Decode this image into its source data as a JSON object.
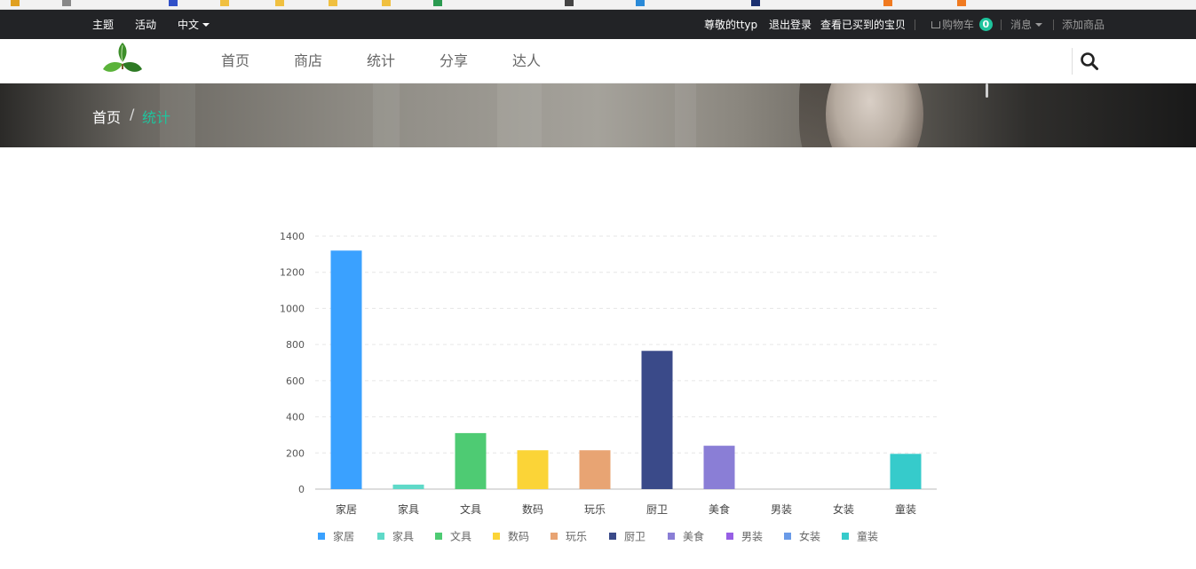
{
  "topbar": {
    "links_left": [
      {
        "label": "主题"
      },
      {
        "label": "活动"
      },
      {
        "label": "中文"
      }
    ],
    "greeting": "尊敬的ttyp",
    "logout": "退出登录",
    "purchased": "查看已买到的宝贝",
    "cart_label": "购物车",
    "cart_count": "0",
    "messages": "消息",
    "add_product": "添加商品",
    "badge_color": "#1fc49d"
  },
  "nav": {
    "items": [
      {
        "label": "首页"
      },
      {
        "label": "商店"
      },
      {
        "label": "统计"
      },
      {
        "label": "分享"
      },
      {
        "label": "达人"
      }
    ]
  },
  "breadcrumb": {
    "home": "首页",
    "separator": "/",
    "current": "统计",
    "current_color": "#1fc49d"
  },
  "chart_data": {
    "type": "bar",
    "categories": [
      "家居",
      "家具",
      "文具",
      "数码",
      "玩乐",
      "厨卫",
      "美食",
      "男装",
      "女装",
      "童装"
    ],
    "values": [
      1320,
      25,
      310,
      215,
      215,
      765,
      240,
      0,
      0,
      195
    ],
    "colors": [
      "#3aa1ff",
      "#5fd9c8",
      "#4ecb73",
      "#fbd437",
      "#e8a473",
      "#3a4a89",
      "#8a7ed6",
      "#975fe5",
      "#6a9be8",
      "#36cbcb"
    ],
    "ylim": [
      0,
      1400
    ],
    "yticks": [
      0,
      200,
      400,
      600,
      800,
      1000,
      1200,
      1400
    ],
    "grid": true,
    "legend": "bottom",
    "legend_items": [
      "家居",
      "家具",
      "文具",
      "数码",
      "玩乐",
      "厨卫",
      "美食",
      "男装",
      "女装",
      "童装"
    ]
  }
}
